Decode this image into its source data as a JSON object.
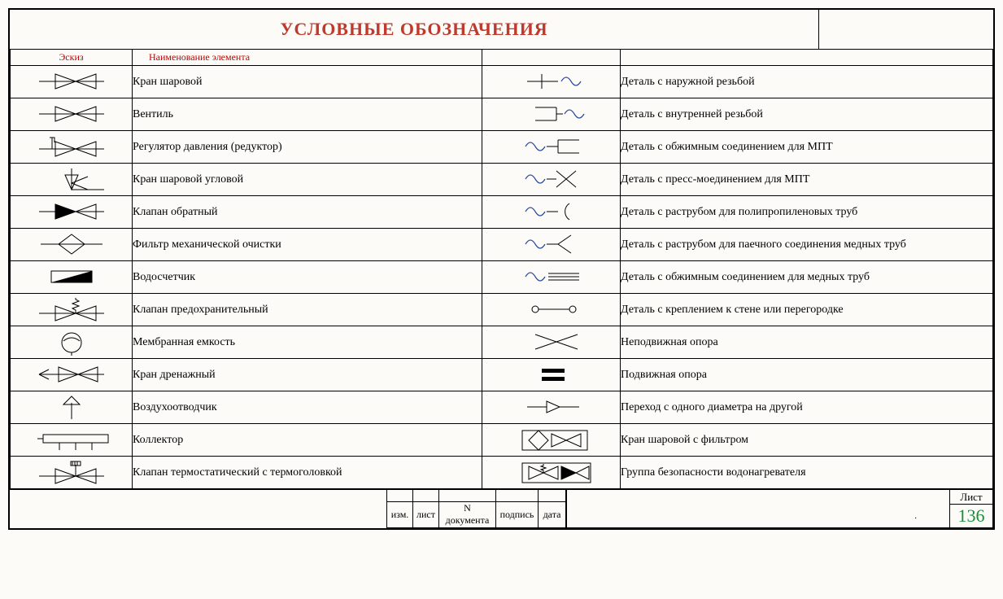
{
  "title": "УСЛОВНЫЕ ОБОЗНАЧЕНИЯ",
  "title_color": "#c0392b",
  "background_color": "#fcfbf8",
  "border_color": "#000000",
  "headers": {
    "sketch": "Эскиз",
    "name": "Наименование элемента"
  },
  "left_rows": [
    {
      "icon": "valve-bowtie",
      "label": "Кран шаровой"
    },
    {
      "icon": "valve-bowtie",
      "label": "Вентиль"
    },
    {
      "icon": "reducer",
      "label": "Регулятор давления (редуктор)"
    },
    {
      "icon": "angle-valve",
      "label": "Кран шаровой угловой"
    },
    {
      "icon": "check-valve",
      "label": "Клапан обратный"
    },
    {
      "icon": "filter-diamond",
      "label": "Фильтр механической очистки"
    },
    {
      "icon": "meter",
      "label": "Водосчетчик"
    },
    {
      "icon": "safety-valve",
      "label": "Клапан предохранительный"
    },
    {
      "icon": "expansion-tank",
      "label": "Мембранная емкость"
    },
    {
      "icon": "drain-valve",
      "label": "Кран дренажный"
    },
    {
      "icon": "air-vent",
      "label": "Воздухоотводчик"
    },
    {
      "icon": "manifold",
      "label": "Коллектор"
    },
    {
      "icon": "thermo-valve",
      "label": "Клапан термостатический с термоголовкой"
    }
  ],
  "right_rows": [
    {
      "icon": "ext-thread",
      "label": "Деталь с наружной резьбой"
    },
    {
      "icon": "int-thread",
      "label": "Деталь с внутренней резьбой"
    },
    {
      "icon": "compression-mpt",
      "label": "Деталь с обжимным соединением для МПТ"
    },
    {
      "icon": "press-mpt",
      "label": "Деталь с пресс-моединением для МПТ"
    },
    {
      "icon": "socket-pp",
      "label": "Деталь с раструбом для полипропиленовых труб"
    },
    {
      "icon": "socket-copper-solder",
      "label": "Деталь    с раструбом для паечного соединения медных труб"
    },
    {
      "icon": "compression-copper",
      "label": "Деталь с  обжимным соединением для медных труб"
    },
    {
      "icon": "wall-mount",
      "label": "Деталь с  креплением к стене или перегородке"
    },
    {
      "icon": "fixed-support",
      "label": "Неподвижная опора"
    },
    {
      "icon": "sliding-support",
      "label": "Подвижная опора"
    },
    {
      "icon": "reducer-cone",
      "label": "Переход с одного диаметра на другой"
    },
    {
      "icon": "valve-with-filter",
      "label": "Кран шаровой с фильтром"
    },
    {
      "icon": "safety-group",
      "label": "Группа безопасности водонагревателя"
    }
  ],
  "footer": {
    "cols": [
      "изм.",
      "лист",
      "N документа",
      "подпись",
      "дата"
    ],
    "sheet_label": "Лист",
    "sheet_number": "136",
    "sheet_number_color": "#1a8f3a"
  },
  "svg_stroke": "#000000",
  "svg_stroke_blue": "#2e4ea0"
}
